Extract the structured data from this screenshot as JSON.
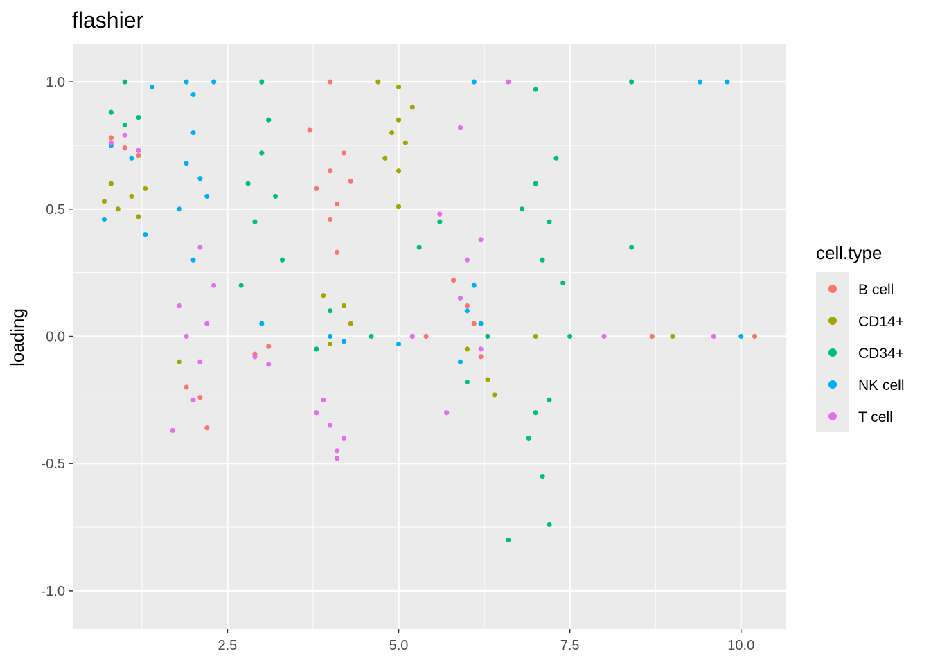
{
  "chart_data": {
    "type": "scatter",
    "title": "flashier",
    "xlabel": "",
    "ylabel": "loading",
    "xlim": [
      0.25,
      10.65
    ],
    "ylim": [
      -1.15,
      1.15
    ],
    "x_ticks": [
      2.5,
      5.0,
      7.5,
      10.0
    ],
    "x_tick_labels": [
      "2.5",
      "5.0",
      "7.5",
      "10.0"
    ],
    "y_ticks": [
      1.0,
      0.5,
      0.0,
      -0.5,
      -1.0
    ],
    "y_tick_labels": [
      "1.0",
      "0.5",
      "0.0",
      "-0.5",
      "-1.0"
    ],
    "grid": true,
    "background": "#EBEBEB",
    "legend": {
      "title": "cell.type",
      "position": "right",
      "entries": [
        "B cell",
        "CD14+",
        "CD34+",
        "NK cell",
        "T cell"
      ]
    },
    "series": [
      {
        "name": "B cell",
        "color": "#F8766D",
        "points": [
          [
            0.8,
            0.78
          ],
          [
            1.0,
            0.74
          ],
          [
            1.2,
            0.71
          ],
          [
            4.0,
            0.65
          ],
          [
            3.8,
            0.58
          ],
          [
            4.2,
            0.72
          ],
          [
            4.1,
            0.52
          ],
          [
            3.7,
            0.81
          ],
          [
            4.3,
            0.61
          ],
          [
            4.0,
            0.46
          ],
          [
            2.9,
            -0.07
          ],
          [
            3.1,
            -0.04
          ],
          [
            1.9,
            -0.2
          ],
          [
            2.1,
            -0.24
          ],
          [
            5.8,
            0.22
          ],
          [
            6.0,
            0.12
          ],
          [
            6.2,
            -0.08
          ],
          [
            6.1,
            0.05
          ],
          [
            5.4,
            0.0
          ],
          [
            8.7,
            0.0
          ],
          [
            10.2,
            0.0
          ],
          [
            4.1,
            0.33
          ],
          [
            2.2,
            -0.36
          ],
          [
            4.0,
            1.0
          ]
        ]
      },
      {
        "name": "CD14+",
        "color": "#A3A500",
        "points": [
          [
            0.7,
            0.53
          ],
          [
            0.9,
            0.5
          ],
          [
            1.1,
            0.55
          ],
          [
            1.3,
            0.58
          ],
          [
            0.8,
            0.6
          ],
          [
            1.2,
            0.47
          ],
          [
            4.9,
            0.8
          ],
          [
            5.1,
            0.76
          ],
          [
            5.0,
            0.85
          ],
          [
            4.8,
            0.7
          ],
          [
            5.2,
            0.9
          ],
          [
            5.0,
            0.65
          ],
          [
            4.7,
            1.0
          ],
          [
            5.0,
            0.98
          ],
          [
            5.0,
            0.51
          ],
          [
            3.9,
            0.16
          ],
          [
            4.2,
            0.12
          ],
          [
            4.0,
            -0.03
          ],
          [
            4.3,
            0.05
          ],
          [
            6.0,
            -0.05
          ],
          [
            6.3,
            -0.17
          ],
          [
            6.4,
            -0.23
          ],
          [
            1.8,
            -0.1
          ],
          [
            7.0,
            0.0
          ],
          [
            9.0,
            0.0
          ]
        ]
      },
      {
        "name": "CD34+",
        "color": "#00BF7D",
        "points": [
          [
            0.8,
            0.88
          ],
          [
            1.0,
            0.83
          ],
          [
            1.2,
            0.86
          ],
          [
            1.0,
            1.0
          ],
          [
            3.0,
            0.72
          ],
          [
            2.8,
            0.6
          ],
          [
            3.2,
            0.55
          ],
          [
            2.9,
            0.45
          ],
          [
            3.1,
            0.85
          ],
          [
            3.0,
            1.0
          ],
          [
            3.3,
            0.3
          ],
          [
            2.7,
            0.2
          ],
          [
            4.6,
            0.0
          ],
          [
            5.6,
            0.45
          ],
          [
            5.3,
            0.35
          ],
          [
            7.0,
            0.6
          ],
          [
            7.2,
            0.45
          ],
          [
            6.8,
            0.5
          ],
          [
            7.1,
            0.3
          ],
          [
            7.3,
            0.7
          ],
          [
            7.0,
            -0.3
          ],
          [
            7.2,
            -0.25
          ],
          [
            6.9,
            -0.4
          ],
          [
            7.1,
            -0.55
          ],
          [
            7.2,
            -0.74
          ],
          [
            6.6,
            -0.8
          ],
          [
            7.4,
            0.21
          ],
          [
            8.4,
            0.35
          ],
          [
            8.4,
            1.0
          ],
          [
            7.0,
            0.97
          ],
          [
            4.0,
            0.1
          ],
          [
            3.8,
            -0.05
          ],
          [
            6.0,
            -0.18
          ],
          [
            6.3,
            0.0
          ],
          [
            7.5,
            0.0
          ]
        ]
      },
      {
        "name": "NK cell",
        "color": "#00B0F6",
        "points": [
          [
            0.8,
            0.75
          ],
          [
            1.1,
            0.7
          ],
          [
            0.7,
            0.46
          ],
          [
            1.3,
            0.4
          ],
          [
            1.9,
            0.68
          ],
          [
            2.1,
            0.62
          ],
          [
            2.0,
            0.8
          ],
          [
            2.2,
            0.55
          ],
          [
            1.8,
            0.5
          ],
          [
            2.0,
            0.95
          ],
          [
            1.9,
            1.0
          ],
          [
            2.3,
            1.0
          ],
          [
            2.0,
            0.3
          ],
          [
            4.0,
            0.0
          ],
          [
            4.2,
            -0.02
          ],
          [
            3.0,
            0.05
          ],
          [
            6.0,
            0.1
          ],
          [
            6.2,
            0.05
          ],
          [
            6.1,
            0.2
          ],
          [
            5.9,
            -0.1
          ],
          [
            6.1,
            1.0
          ],
          [
            9.4,
            1.0
          ],
          [
            9.8,
            1.0
          ],
          [
            1.4,
            0.98
          ],
          [
            5.0,
            -0.03
          ],
          [
            10.0,
            0.0
          ]
        ]
      },
      {
        "name": "T cell",
        "color": "#E76BF3",
        "points": [
          [
            0.8,
            0.76
          ],
          [
            1.0,
            0.79
          ],
          [
            1.2,
            0.73
          ],
          [
            4.0,
            -0.35
          ],
          [
            3.8,
            -0.3
          ],
          [
            4.2,
            -0.4
          ],
          [
            3.9,
            -0.25
          ],
          [
            4.1,
            -0.45
          ],
          [
            4.1,
            -0.48
          ],
          [
            1.9,
            0.0
          ],
          [
            2.1,
            -0.1
          ],
          [
            2.0,
            -0.25
          ],
          [
            1.8,
            0.12
          ],
          [
            2.2,
            0.05
          ],
          [
            1.7,
            -0.37
          ],
          [
            2.9,
            -0.08
          ],
          [
            3.1,
            -0.11
          ],
          [
            6.0,
            0.3
          ],
          [
            6.2,
            0.38
          ],
          [
            5.9,
            0.15
          ],
          [
            6.2,
            -0.05
          ],
          [
            5.7,
            -0.3
          ],
          [
            5.6,
            0.48
          ],
          [
            6.6,
            1.0
          ],
          [
            5.9,
            0.82
          ],
          [
            5.2,
            0.0
          ],
          [
            8.0,
            0.0
          ],
          [
            9.6,
            0.0
          ],
          [
            2.1,
            0.35
          ],
          [
            2.3,
            0.2
          ]
        ]
      }
    ]
  }
}
